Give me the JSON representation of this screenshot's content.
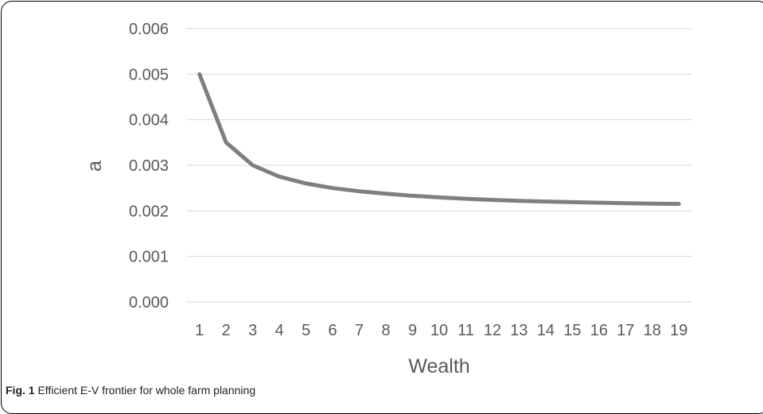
{
  "caption": {
    "label": "Fig. 1",
    "text": "Efficient E-V frontier for whole farm planning"
  },
  "chart_data": {
    "type": "line",
    "title": "",
    "xlabel": "Wealth",
    "ylabel": "a",
    "x": [
      1,
      2,
      3,
      4,
      5,
      6,
      7,
      8,
      9,
      10,
      11,
      12,
      13,
      14,
      15,
      16,
      17,
      18,
      19
    ],
    "y_ticks": [
      "0.000",
      "0.001",
      "0.002",
      "0.003",
      "0.004",
      "0.005",
      "0.006"
    ],
    "ylim": [
      0,
      0.006
    ],
    "grid": true,
    "legend": "none",
    "series": [
      {
        "values": [
          0.005,
          0.0035,
          0.003,
          0.00275,
          0.0026,
          0.0025,
          0.00243,
          0.002375,
          0.00233,
          0.002295,
          0.002265,
          0.00224,
          0.00222,
          0.002205,
          0.00219,
          0.002178,
          0.002168,
          0.00216,
          0.002152
        ],
        "color": "#7f7f7f"
      }
    ],
    "colors": {
      "line": "#7f7f7f",
      "grid": "#d9d9d9",
      "text": "#595959"
    }
  }
}
